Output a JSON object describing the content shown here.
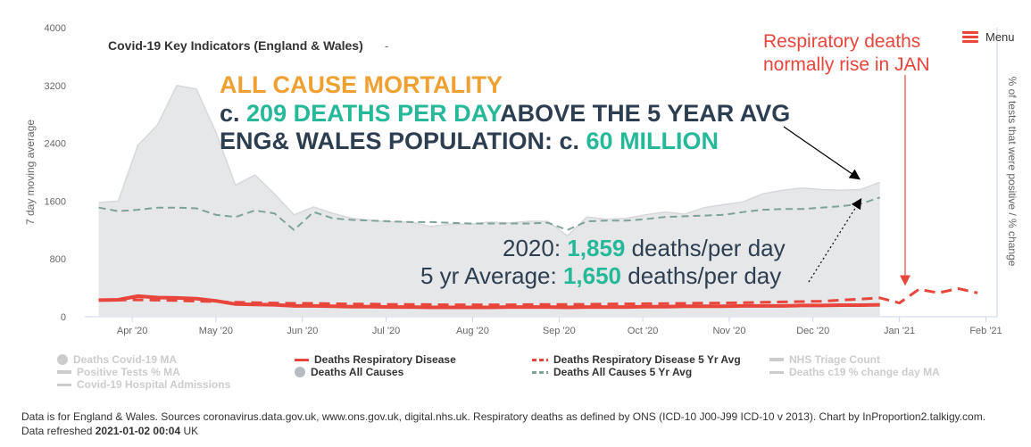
{
  "chart_data": {
    "type": "line",
    "title": "Covid-19 Key Indicators (England & Wales)",
    "title_suffix": "-",
    "ylabel": "7 day moving average",
    "y2label": "% of tests that were positive / % change",
    "ylim": [
      0,
      4000
    ],
    "yticks": [
      "0",
      "800",
      "1600",
      "2400",
      "3200",
      "4000"
    ],
    "x_ticks": [
      "Apr '20",
      "May '20",
      "Jun '20",
      "Jul '20",
      "Aug '20",
      "Sep '20",
      "Oct '20",
      "Nov '20",
      "Dec '20",
      "Jan '21",
      "Feb '21"
    ],
    "grid": false,
    "legend_position": "bottom",
    "series": [
      {
        "name": "Deaths All Causes",
        "style": "area",
        "color": "#e6e7e9",
        "x": [
          "2020-03-20",
          "2020-03-27",
          "2020-04-03",
          "2020-04-10",
          "2020-04-17",
          "2020-04-24",
          "2020-05-01",
          "2020-05-08",
          "2020-05-15",
          "2020-05-22",
          "2020-05-29",
          "2020-06-05",
          "2020-06-12",
          "2020-06-19",
          "2020-06-26",
          "2020-07-03",
          "2020-07-10",
          "2020-07-17",
          "2020-07-24",
          "2020-07-31",
          "2020-08-07",
          "2020-08-14",
          "2020-08-21",
          "2020-08-28",
          "2020-09-04",
          "2020-09-11",
          "2020-09-18",
          "2020-09-25",
          "2020-10-02",
          "2020-10-09",
          "2020-10-16",
          "2020-10-23",
          "2020-10-30",
          "2020-11-06",
          "2020-11-13",
          "2020-11-20",
          "2020-11-27",
          "2020-12-04",
          "2020-12-11",
          "2020-12-18",
          "2020-12-25"
        ],
        "values": [
          1580,
          1600,
          2370,
          2650,
          3200,
          3150,
          2550,
          1820,
          1960,
          1700,
          1410,
          1520,
          1430,
          1360,
          1330,
          1310,
          1310,
          1250,
          1280,
          1280,
          1310,
          1300,
          1320,
          1320,
          1120,
          1380,
          1350,
          1360,
          1410,
          1450,
          1420,
          1510,
          1550,
          1590,
          1700,
          1750,
          1780,
          1760,
          1750,
          1760,
          1860
        ]
      },
      {
        "name": "Deaths All Causes 5 Yr Avg",
        "style": "dashed",
        "color": "#7fa29a",
        "x": [
          "2020-03-20",
          "2020-03-27",
          "2020-04-03",
          "2020-04-10",
          "2020-04-17",
          "2020-04-24",
          "2020-05-01",
          "2020-05-08",
          "2020-05-15",
          "2020-05-22",
          "2020-05-29",
          "2020-06-05",
          "2020-06-12",
          "2020-06-19",
          "2020-06-26",
          "2020-07-03",
          "2020-07-10",
          "2020-07-17",
          "2020-07-24",
          "2020-07-31",
          "2020-08-07",
          "2020-08-14",
          "2020-08-21",
          "2020-08-28",
          "2020-09-04",
          "2020-09-11",
          "2020-09-18",
          "2020-09-25",
          "2020-10-02",
          "2020-10-09",
          "2020-10-16",
          "2020-10-23",
          "2020-10-30",
          "2020-11-06",
          "2020-11-13",
          "2020-11-20",
          "2020-11-27",
          "2020-12-04",
          "2020-12-11",
          "2020-12-18",
          "2020-12-25"
        ],
        "values": [
          1510,
          1460,
          1480,
          1510,
          1510,
          1500,
          1410,
          1380,
          1470,
          1430,
          1200,
          1450,
          1360,
          1340,
          1330,
          1320,
          1310,
          1310,
          1300,
          1290,
          1290,
          1290,
          1290,
          1300,
          1200,
          1320,
          1330,
          1330,
          1350,
          1380,
          1390,
          1400,
          1410,
          1450,
          1480,
          1490,
          1490,
          1510,
          1530,
          1560,
          1650
        ]
      },
      {
        "name": "Deaths Respiratory Disease",
        "style": "solid",
        "color": "#e8453c",
        "x": [
          "2020-03-20",
          "2020-03-27",
          "2020-04-03",
          "2020-04-10",
          "2020-04-17",
          "2020-04-24",
          "2020-05-01",
          "2020-05-08",
          "2020-05-15",
          "2020-05-22",
          "2020-05-29",
          "2020-06-05",
          "2020-06-12",
          "2020-06-19",
          "2020-06-26",
          "2020-07-03",
          "2020-07-10",
          "2020-07-17",
          "2020-07-24",
          "2020-07-31",
          "2020-08-07",
          "2020-08-14",
          "2020-08-21",
          "2020-08-28",
          "2020-09-04",
          "2020-09-11",
          "2020-09-18",
          "2020-09-25",
          "2020-10-02",
          "2020-10-09",
          "2020-10-16",
          "2020-10-23",
          "2020-10-30",
          "2020-11-06",
          "2020-11-13",
          "2020-11-20",
          "2020-11-27",
          "2020-12-04",
          "2020-12-11",
          "2020-12-18",
          "2020-12-25"
        ],
        "values": [
          230,
          235,
          285,
          265,
          260,
          250,
          220,
          175,
          170,
          165,
          150,
          150,
          145,
          140,
          140,
          135,
          135,
          130,
          130,
          130,
          130,
          135,
          135,
          135,
          130,
          135,
          135,
          135,
          140,
          140,
          145,
          145,
          145,
          150,
          150,
          150,
          155,
          155,
          160,
          160,
          165
        ]
      },
      {
        "name": "Deaths Respiratory Disease 5 Yr Avg",
        "style": "dashed",
        "color": "#e8453c",
        "x": [
          "2020-03-20",
          "2020-03-27",
          "2020-04-03",
          "2020-04-10",
          "2020-04-17",
          "2020-04-24",
          "2020-05-01",
          "2020-05-08",
          "2020-05-15",
          "2020-05-22",
          "2020-05-29",
          "2020-06-05",
          "2020-06-12",
          "2020-06-19",
          "2020-06-26",
          "2020-07-03",
          "2020-07-10",
          "2020-07-17",
          "2020-07-24",
          "2020-07-31",
          "2020-08-07",
          "2020-08-14",
          "2020-08-21",
          "2020-08-28",
          "2020-09-04",
          "2020-09-11",
          "2020-09-18",
          "2020-09-25",
          "2020-10-02",
          "2020-10-09",
          "2020-10-16",
          "2020-10-23",
          "2020-10-30",
          "2020-11-06",
          "2020-11-13",
          "2020-11-20",
          "2020-11-27",
          "2020-12-04",
          "2020-12-11",
          "2020-12-18",
          "2020-12-25",
          "2021-01-01",
          "2021-01-08",
          "2021-01-15",
          "2021-01-22",
          "2021-01-29"
        ],
        "values": [
          230,
          230,
          235,
          230,
          225,
          215,
          210,
          200,
          195,
          190,
          185,
          185,
          180,
          175,
          175,
          170,
          170,
          168,
          165,
          165,
          165,
          165,
          168,
          170,
          170,
          172,
          175,
          178,
          180,
          182,
          185,
          188,
          190,
          195,
          200,
          205,
          210,
          215,
          230,
          245,
          260,
          190,
          380,
          330,
          390,
          330
        ]
      }
    ],
    "legend": [
      {
        "label": "Deaths Covid-19 MA",
        "symbol": "dot",
        "color": "#cccccc",
        "active": false
      },
      {
        "label": "Positive Tests % MA",
        "symbol": "bar",
        "color": "#cccccc",
        "active": false
      },
      {
        "label": "Covid-19 Hospital Admissions",
        "symbol": "line",
        "color": "#cccccc",
        "active": false
      },
      {
        "label": "Deaths Respiratory Disease",
        "symbol": "line",
        "color": "#e8453c",
        "active": true
      },
      {
        "label": "Deaths All Causes",
        "symbol": "dot",
        "color": "#b8bcc2",
        "active": true
      },
      {
        "label": "Deaths Respiratory Disease 5 Yr Avg",
        "symbol": "dash",
        "color": "#e8453c",
        "active": true
      },
      {
        "label": "Deaths All Causes 5 Yr Avg",
        "symbol": "dash",
        "color": "#7fa29a",
        "active": true
      },
      {
        "label": "NHS Triage Count",
        "symbol": "bar",
        "color": "#cccccc",
        "active": false
      },
      {
        "label": "Deaths c19 % change day MA",
        "symbol": "line",
        "color": "#cccccc",
        "active": false
      }
    ]
  },
  "annotations": {
    "line1": "ALL CAUSE MORTALITY",
    "line2_prefix": "c. ",
    "line2_value": "209 DEATHS PER DAY",
    "line2_suffix": "ABOVE THE 5 YEAR AVG",
    "line3_prefix": "ENG& WALES POPULATION:  c. ",
    "line3_value": "60 MILLION",
    "y2020_prefix": "2020: ",
    "y2020_value": "1,859",
    "y2020_suffix": " deaths/per day",
    "avg_prefix": "5 yr Average: ",
    "avg_value": "1,650",
    "avg_suffix": " deaths/per day",
    "resp_line1": "Respiratory deaths",
    "resp_line2": "normally rise in JAN"
  },
  "menu": {
    "label": "Menu"
  },
  "footer": {
    "text": "Data is for England & Wales. Sources coronavirus.data.gov.uk, www.ons.gov.uk, digital.nhs.uk. Respiratory deaths as defined by ONS (ICD-10 J00-J99 ICD-10 v 2013). Chart by InProportion2.talkigy.com. Data refreshed ",
    "refreshed": "2021-01-02 00:04",
    "suffix": " UK"
  },
  "colors": {
    "accent_orange": "#f0a030",
    "teal": "#25b99a",
    "navy": "#2d3e50",
    "red": "#e8453c"
  }
}
